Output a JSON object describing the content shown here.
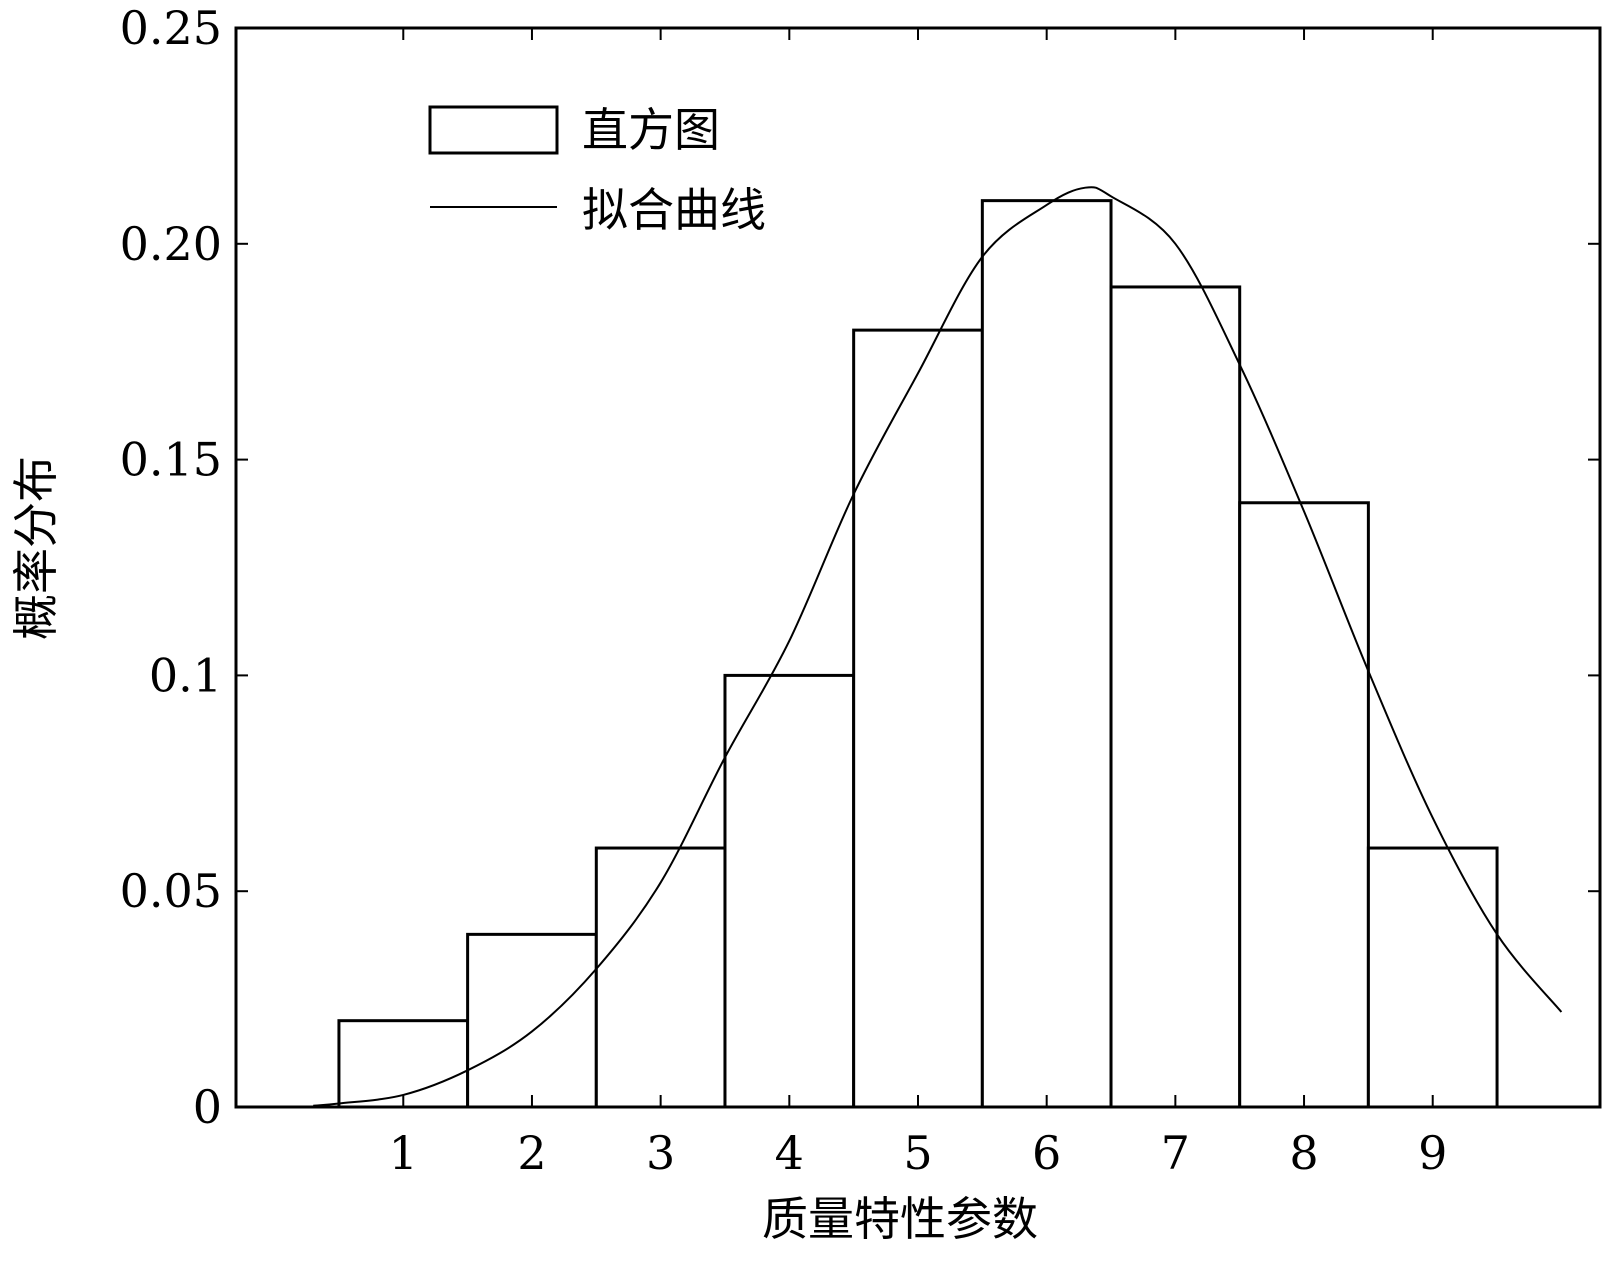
{
  "chart_data": {
    "type": "bar",
    "title": "",
    "xlabel": "质量特性参数",
    "ylabel": "概率分布",
    "categories": [
      "1",
      "2",
      "3",
      "4",
      "5",
      "6",
      "7",
      "8",
      "9"
    ],
    "series": [
      {
        "name": "直方图",
        "type": "bar",
        "x": [
          1,
          2,
          3,
          4,
          5,
          6,
          7,
          8,
          9
        ],
        "values": [
          0.02,
          0.04,
          0.06,
          0.1,
          0.18,
          0.21,
          0.19,
          0.14,
          0.06
        ]
      },
      {
        "name": "拟合曲线",
        "type": "line",
        "x": [
          0.3,
          0.5,
          1.0,
          1.5,
          2.0,
          2.5,
          3.0,
          3.5,
          4.0,
          4.5,
          5.0,
          5.5,
          6.0,
          6.3,
          6.5,
          7.0,
          7.5,
          8.0,
          8.5,
          9.0,
          9.5,
          10.0
        ],
        "values": [
          0.0003,
          0.0008,
          0.0028,
          0.0085,
          0.0175,
          0.032,
          0.052,
          0.081,
          0.108,
          0.142,
          0.17,
          0.197,
          0.209,
          0.213,
          0.211,
          0.2,
          0.172,
          0.138,
          0.101,
          0.067,
          0.04,
          0.022
        ]
      }
    ],
    "xlim": [
      -0.3,
      10.3
    ],
    "ylim": [
      0,
      0.25
    ],
    "xticks": [
      1,
      2,
      3,
      4,
      5,
      6,
      7,
      8,
      9
    ],
    "yticks": [
      0,
      0.05,
      0.1,
      0.15,
      0.2,
      0.25
    ],
    "ytick_labels": [
      "0",
      "0.05",
      "0.1",
      "0.15",
      "0.20",
      "0.25"
    ],
    "xtick_labels": [
      "1",
      "2",
      "3",
      "4",
      "5",
      "6",
      "7",
      "8",
      "9"
    ],
    "bar_width": 1.0,
    "legend": {
      "placement": "top-left",
      "entries": [
        "直方图",
        "拟合曲线"
      ]
    },
    "grid": false
  }
}
